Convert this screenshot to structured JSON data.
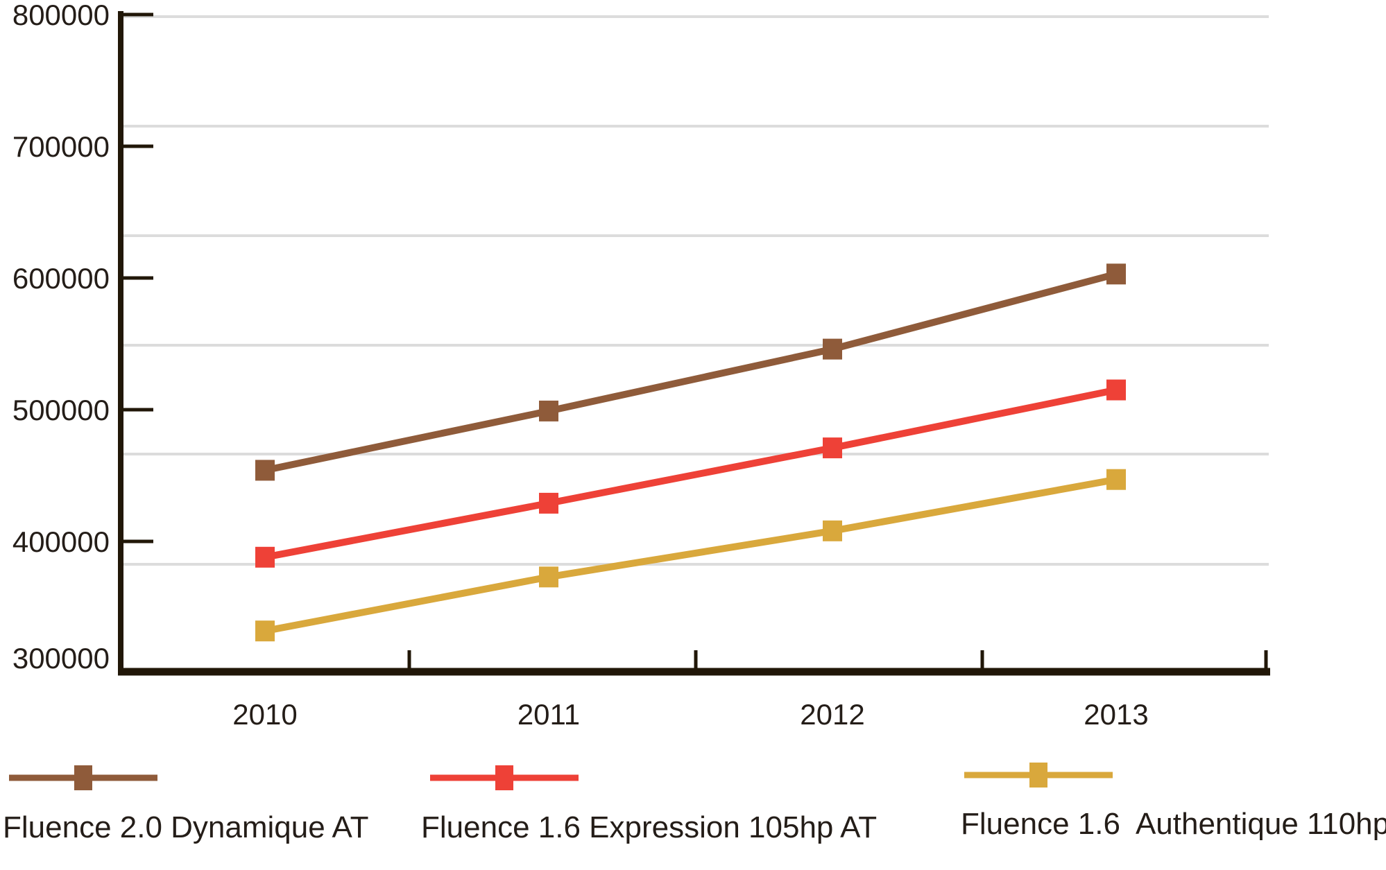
{
  "page": {
    "background": "#ffffff"
  },
  "chart_data": {
    "type": "line",
    "title": "",
    "xlabel": "",
    "ylabel": "",
    "categories": [
      "2010",
      "2011",
      "2012",
      "2013"
    ],
    "series": [
      {
        "name": "Fluence 2.0 Dynamique AT",
        "color": "#8f5b3a",
        "values": [
          454000,
          499000,
          546000,
          603000
        ]
      },
      {
        "name": "Fluence 1.6 Expression 105hp AT",
        "color": "#ee4137",
        "values": [
          388000,
          429000,
          471000,
          515000
        ]
      },
      {
        "name": "Fluence 1.6  Authentique 110hp",
        "color": "#d9a83c",
        "values": [
          332000,
          373000,
          408000,
          447000
        ]
      }
    ],
    "ylim": [
      300000,
      800000
    ],
    "y_tick_step": 100000,
    "y_tick_values": [
      800000,
      700000,
      600000,
      500000,
      400000,
      300000
    ],
    "y_tick_labels": [
      "800000",
      "700000",
      "600000",
      "500000",
      "400000",
      "300000"
    ],
    "x_tick_labels": [
      "2010",
      "2011",
      "2012",
      "2013"
    ],
    "marker": "square",
    "grid": "horizontal",
    "legend_position": "bottom",
    "axis_color": "#211708",
    "grid_color": "#dcdcdc",
    "text_color": "#241d18"
  }
}
